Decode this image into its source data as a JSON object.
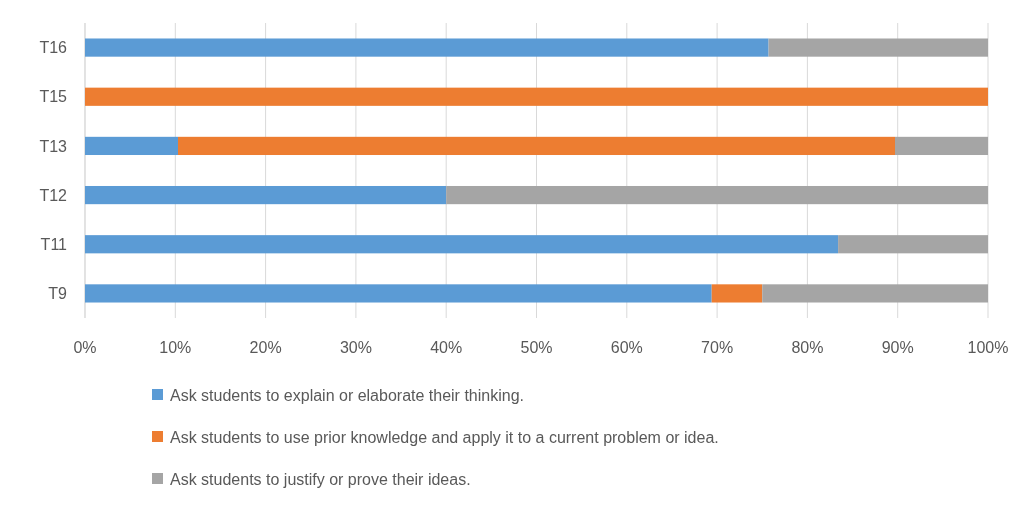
{
  "chart_data": {
    "type": "bar",
    "orientation": "horizontal",
    "stacked": true,
    "categories": [
      "T16",
      "T15",
      "T13",
      "T12",
      "T11",
      "T9"
    ],
    "series": [
      {
        "name": "Ask students to explain or elaborate their thinking.",
        "color": "#5b9bd5",
        "values": [
          75.7,
          null,
          10.3,
          40,
          83.4,
          69.4
        ]
      },
      {
        "name": "Ask students to use prior knowledge and apply it to a current problem or idea.",
        "color": "#ed7d31",
        "values": [
          null,
          100,
          79.4,
          null,
          null,
          5.6
        ]
      },
      {
        "name": "Ask students to justify or prove their ideas.",
        "color": "#a5a5a5",
        "values": [
          24.3,
          null,
          10.3,
          60,
          16.6,
          25
        ]
      }
    ],
    "xlim": [
      0,
      100
    ],
    "xticks": [
      {
        "value": 0,
        "label": "0%"
      },
      {
        "value": 10,
        "label": "10%"
      },
      {
        "value": 20,
        "label": "20%"
      },
      {
        "value": 30,
        "label": "30%"
      },
      {
        "value": 40,
        "label": "40%"
      },
      {
        "value": 50,
        "label": "50%"
      },
      {
        "value": 60,
        "label": "60%"
      },
      {
        "value": 70,
        "label": "70%"
      },
      {
        "value": 80,
        "label": "80%"
      },
      {
        "value": 90,
        "label": "90%"
      },
      {
        "value": 100,
        "label": "100%"
      }
    ],
    "grid": "x",
    "legend": "bottom"
  }
}
